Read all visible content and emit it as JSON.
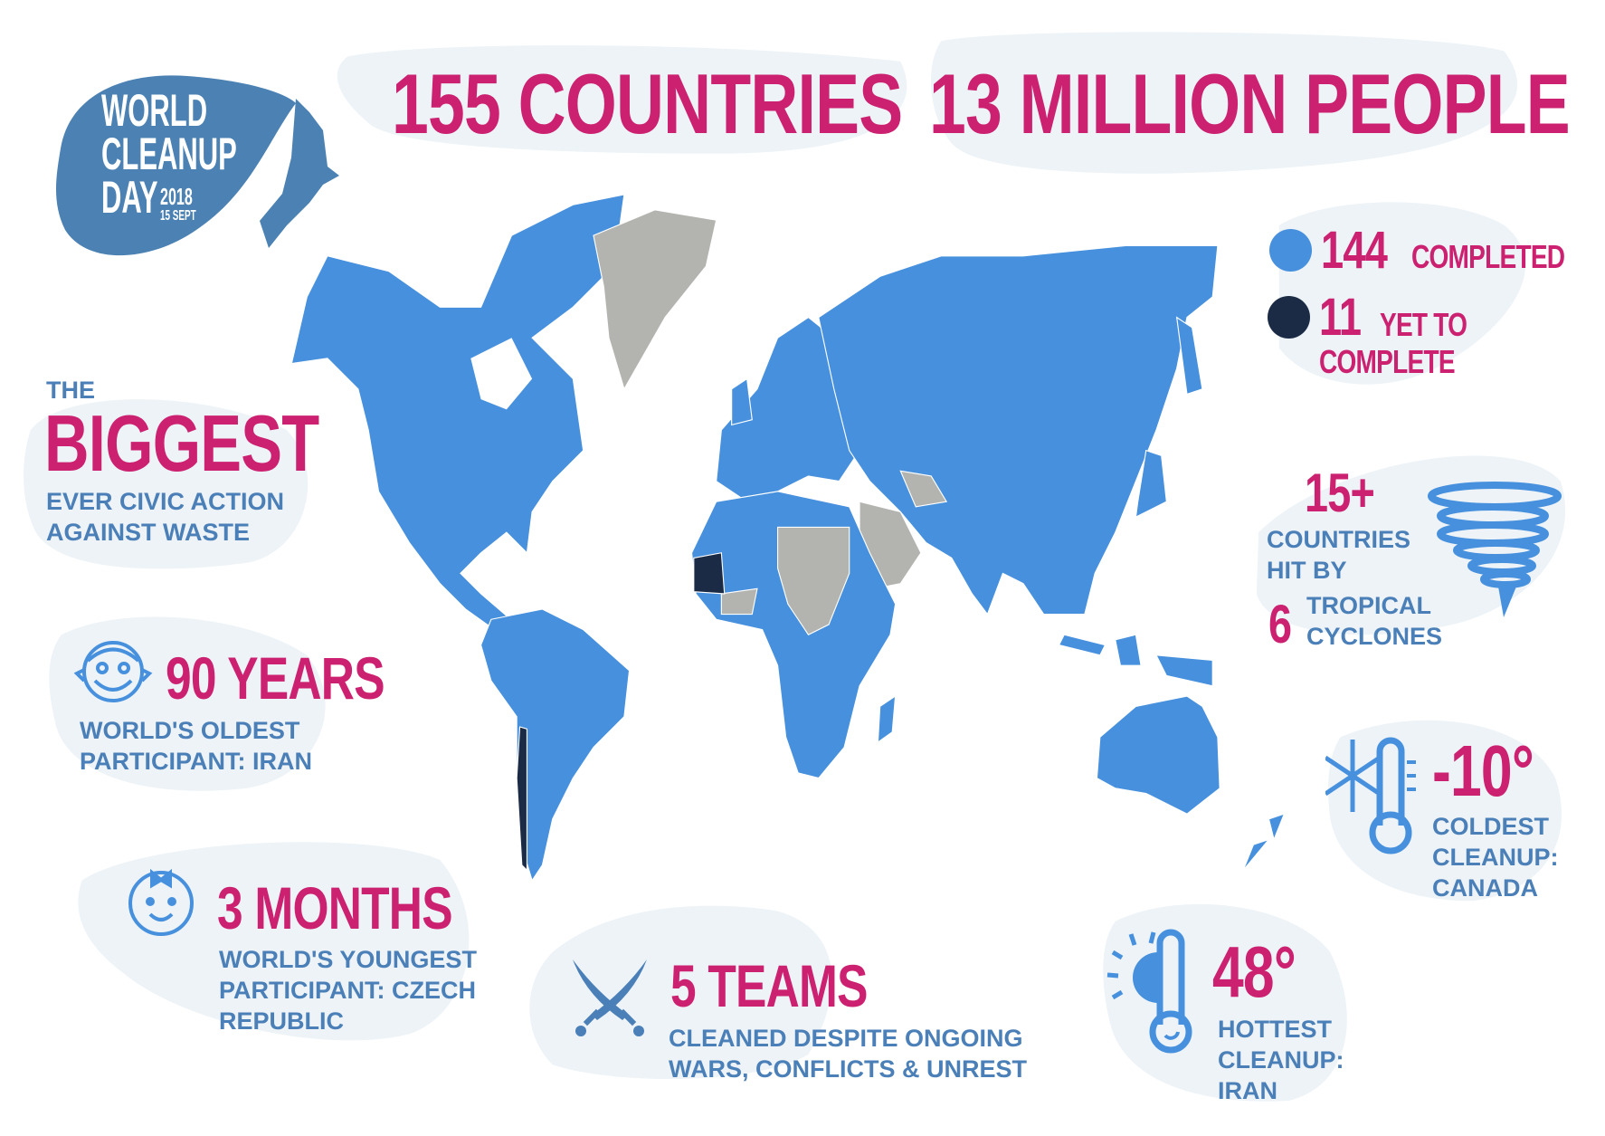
{
  "logo": {
    "line1": "WORLD",
    "line2": "CLEANUP",
    "line3": "DAY",
    "year": "2018",
    "date": "15 SEPT"
  },
  "headline": {
    "countries": "155 COUNTRIES",
    "people": "13 MILLION PEOPLE"
  },
  "legend": {
    "completed": {
      "number": "144",
      "label": "COMPLETED",
      "color": "#4690dd"
    },
    "pending": {
      "number": "11",
      "label_line1": "YET TO",
      "label_line2": "COMPLETE",
      "color": "#1c2b45"
    }
  },
  "biggest": {
    "pre": "THE",
    "title": "BIGGEST",
    "line1": "EVER CIVIC ACTION",
    "line2": "AGAINST WASTE"
  },
  "oldest": {
    "icon": "old-man-icon",
    "title": "90 YEARS",
    "line1": "WORLD'S OLDEST",
    "line2": "PARTICIPANT: IRAN"
  },
  "youngest": {
    "icon": "baby-icon",
    "title": "3 MONTHS",
    "line1": "WORLD'S YOUNGEST",
    "line2": "PARTICIPANT: CZECH",
    "line3": "REPUBLIC"
  },
  "teams": {
    "icon": "crossed-swords-icon",
    "title": "5 TEAMS",
    "line1": "CLEANED DESPITE ONGOING",
    "line2": "WARS, CONFLICTS & UNREST"
  },
  "hottest": {
    "icon": "sun-thermometer-icon",
    "title": "48°",
    "line1": "HOTTEST",
    "line2": "CLEANUP:",
    "line3": "IRAN"
  },
  "coldest": {
    "icon": "snowflake-thermometer-icon",
    "title": "-10°",
    "line1": "COLDEST",
    "line2": "CLEANUP:",
    "line3": "CANADA"
  },
  "cyclones": {
    "icon": "tornado-icon",
    "number": "15+",
    "line1": "COUNTRIES",
    "line2": "HIT BY",
    "count": "6",
    "line3": "TROPICAL",
    "line4": "CYCLONES"
  },
  "colors": {
    "pink": "#cc2170",
    "blue_text": "#4a7fb8",
    "map_blue": "#4690dd",
    "map_gray": "#b3b3b0",
    "map_navy": "#1c2b45",
    "blob": "#edf3f7"
  }
}
